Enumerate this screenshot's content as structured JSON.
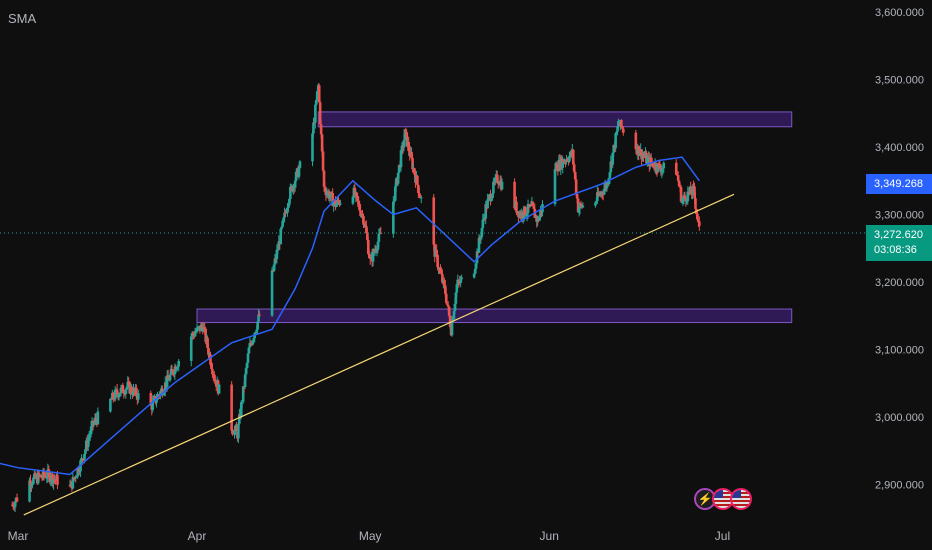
{
  "indicator_label": "SMA",
  "price_axis": [
    "3,600.000",
    "3,500.000",
    "3,400.000",
    "3,300.000",
    "3,200.000",
    "3,100.000",
    "3,000.000",
    "2,900.000"
  ],
  "time_axis": [
    "Mar",
    "Apr",
    "May",
    "Jun",
    "Jul"
  ],
  "sma_badge": "3,349.268",
  "price_badge": {
    "price": "3,272.620",
    "countdown": "03:08:36"
  },
  "colors": {
    "up": "#26a69a",
    "down": "#ef5350",
    "sma": "#2962ff",
    "trendline": "#f7d774",
    "zone_fill": "#3b1f6e",
    "zone_border": "#7e57c2",
    "background": "#0f0f0f"
  },
  "icons": [
    "lightning-icon",
    "us-flag-icon",
    "us-flag-icon"
  ],
  "chart_data": {
    "type": "candlestick",
    "ylim": [
      2850,
      3620
    ],
    "x_ticks": [
      {
        "label": "Mar",
        "date": "2025-03-01"
      },
      {
        "label": "Apr",
        "date": "2025-04-01"
      },
      {
        "label": "May",
        "date": "2025-05-01"
      },
      {
        "label": "Jun",
        "date": "2025-06-01"
      },
      {
        "label": "Jul",
        "date": "2025-07-01"
      }
    ],
    "price_path": [
      [
        "2025-02-28",
        2870
      ],
      [
        "2025-03-03",
        2905
      ],
      [
        "2025-03-06",
        2915
      ],
      [
        "2025-03-10",
        2895
      ],
      [
        "2025-03-12",
        2935
      ],
      [
        "2025-03-14",
        2990
      ],
      [
        "2025-03-18",
        3035
      ],
      [
        "2025-03-20",
        3045
      ],
      [
        "2025-03-24",
        3015
      ],
      [
        "2025-03-27",
        3055
      ],
      [
        "2025-03-31",
        3120
      ],
      [
        "2025-04-02",
        3135
      ],
      [
        "2025-04-04",
        3060
      ],
      [
        "2025-04-07",
        2985
      ],
      [
        "2025-04-08",
        2975
      ],
      [
        "2025-04-10",
        3100
      ],
      [
        "2025-04-14",
        3210
      ],
      [
        "2025-04-16",
        3290
      ],
      [
        "2025-04-17",
        3330
      ],
      [
        "2025-04-21",
        3420
      ],
      [
        "2025-04-22",
        3490
      ],
      [
        "2025-04-23",
        3340
      ],
      [
        "2025-04-25",
        3315
      ],
      [
        "2025-04-28",
        3335
      ],
      [
        "2025-04-30",
        3290
      ],
      [
        "2025-05-01",
        3230
      ],
      [
        "2025-05-05",
        3320
      ],
      [
        "2025-05-07",
        3420
      ],
      [
        "2025-05-09",
        3350
      ],
      [
        "2025-05-12",
        3250
      ],
      [
        "2025-05-14",
        3185
      ],
      [
        "2025-05-15",
        3130
      ],
      [
        "2025-05-16",
        3195
      ],
      [
        "2025-05-19",
        3220
      ],
      [
        "2025-05-21",
        3310
      ],
      [
        "2025-05-23",
        3355
      ],
      [
        "2025-05-27",
        3300
      ],
      [
        "2025-05-29",
        3310
      ],
      [
        "2025-05-30",
        3290
      ],
      [
        "2025-06-02",
        3370
      ],
      [
        "2025-06-05",
        3390
      ],
      [
        "2025-06-06",
        3310
      ],
      [
        "2025-06-09",
        3320
      ],
      [
        "2025-06-11",
        3345
      ],
      [
        "2025-06-13",
        3435
      ],
      [
        "2025-06-16",
        3400
      ],
      [
        "2025-06-18",
        3380
      ],
      [
        "2025-06-20",
        3370
      ],
      [
        "2025-06-23",
        3365
      ],
      [
        "2025-06-24",
        3320
      ],
      [
        "2025-06-25",
        3330
      ],
      [
        "2025-06-26",
        3335
      ],
      [
        "2025-06-27",
        3275
      ]
    ],
    "sma_path": [
      [
        "2025-02-24",
        2935
      ],
      [
        "2025-03-01",
        2925
      ],
      [
        "2025-03-10",
        2915
      ],
      [
        "2025-03-20",
        2990
      ],
      [
        "2025-03-28",
        3050
      ],
      [
        "2025-04-07",
        3110
      ],
      [
        "2025-04-14",
        3130
      ],
      [
        "2025-04-18",
        3190
      ],
      [
        "2025-04-21",
        3250
      ],
      [
        "2025-04-23",
        3305
      ],
      [
        "2025-04-28",
        3350
      ],
      [
        "2025-05-02",
        3320
      ],
      [
        "2025-05-05",
        3300
      ],
      [
        "2025-05-09",
        3310
      ],
      [
        "2025-05-14",
        3270
      ],
      [
        "2025-05-19",
        3230
      ],
      [
        "2025-05-22",
        3255
      ],
      [
        "2025-05-27",
        3290
      ],
      [
        "2025-06-02",
        3320
      ],
      [
        "2025-06-10",
        3345
      ],
      [
        "2025-06-16",
        3370
      ],
      [
        "2025-06-20",
        3380
      ],
      [
        "2025-06-24",
        3385
      ],
      [
        "2025-06-27",
        3350
      ]
    ],
    "support_zone": {
      "from": "2025-04-01",
      "to": "2025-07-13",
      "low": 3140,
      "high": 3160
    },
    "resistance_zone": {
      "from": "2025-04-22",
      "to": "2025-07-13",
      "low": 3430,
      "high": 3452
    },
    "trendline": {
      "from": [
        "2025-03-02",
        2855
      ],
      "to": [
        "2025-07-03",
        3330
      ]
    },
    "last_price": 3272.62,
    "sma_last": 3349.268
  }
}
